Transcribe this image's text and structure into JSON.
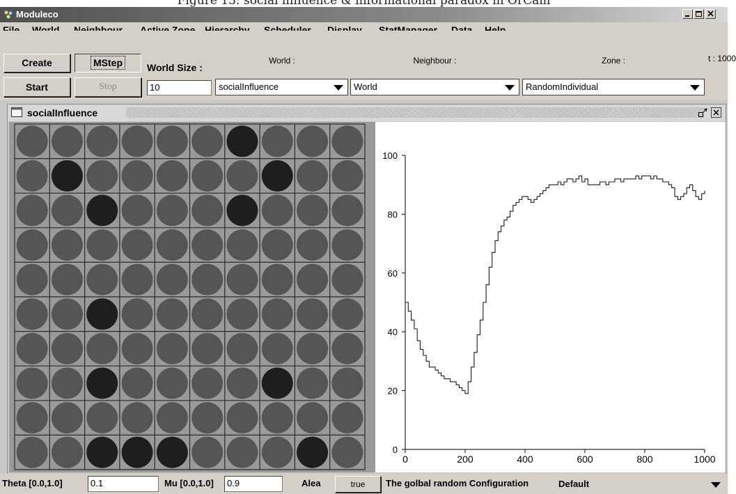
{
  "caption": "Figure 13: social influence & informational paradox in OrCam",
  "window": {
    "title": "Moduleco",
    "buttons": [
      "minimize-icon",
      "maximize-icon",
      "close-icon"
    ]
  },
  "menu": [
    "File",
    "World",
    "Neighbour",
    "Active Zone",
    "Hierarchy",
    "Scheduler",
    "Display",
    "StatManager",
    "Data",
    "Help"
  ],
  "toolbar": {
    "create_label": "Create",
    "mstep_label": "MStep",
    "start_label": "Start",
    "stop_label": "Stop",
    "world_size_label": "World Size :",
    "world_size_value": "10",
    "world_caption": "World :",
    "world_value": "socialInfluence",
    "neighbour_caption": "Neighbour :",
    "neighbour_value": "World",
    "zone_caption": "Zone :",
    "zone_value": "RandomIndividual",
    "time_label": "t : 1000"
  },
  "inner_window": {
    "title": "socialInfluence",
    "icons": [
      "window-icon",
      "minimize-frame-icon",
      "close-frame-icon"
    ]
  },
  "grid": {
    "rows": 10,
    "cols": 10,
    "cells": [
      [
        0,
        0,
        0,
        0,
        0,
        0,
        1,
        0,
        0,
        0
      ],
      [
        0,
        1,
        0,
        0,
        0,
        0,
        0,
        1,
        0,
        0
      ],
      [
        0,
        0,
        1,
        0,
        0,
        0,
        1,
        0,
        0,
        0
      ],
      [
        0,
        0,
        0,
        0,
        0,
        0,
        0,
        0,
        0,
        0
      ],
      [
        0,
        0,
        0,
        0,
        0,
        0,
        0,
        0,
        0,
        0
      ],
      [
        0,
        0,
        1,
        0,
        0,
        0,
        0,
        0,
        0,
        0
      ],
      [
        0,
        0,
        0,
        0,
        0,
        0,
        0,
        0,
        0,
        0
      ],
      [
        0,
        0,
        1,
        0,
        0,
        0,
        0,
        1,
        0,
        0
      ],
      [
        0,
        0,
        0,
        0,
        0,
        0,
        0,
        0,
        0,
        0
      ],
      [
        0,
        0,
        1,
        1,
        1,
        0,
        0,
        0,
        1,
        0
      ]
    ],
    "colors": {
      "state0": "#555555",
      "state1": "#1e1e1e",
      "background": "#9a9a9a",
      "lines": "#2a2a2a"
    }
  },
  "chart_data": {
    "type": "line",
    "title": "",
    "xlabel": "",
    "ylabel": "",
    "xlim": [
      0,
      1000
    ],
    "ylim": [
      0,
      100
    ],
    "xticks": [
      "0",
      "200",
      "400",
      "600",
      "800",
      "1000"
    ],
    "yticks": [
      "0",
      "20",
      "40",
      "60",
      "80",
      "100"
    ],
    "grid": false,
    "series": [
      {
        "x": [
          0,
          10,
          20,
          30,
          40,
          50,
          60,
          70,
          80,
          90,
          100,
          110,
          120,
          130,
          140,
          150,
          160,
          170,
          180,
          190,
          200,
          210,
          220,
          230,
          240,
          250,
          260,
          270,
          280,
          290,
          300,
          310,
          320,
          330,
          340,
          350,
          360,
          370,
          380,
          390,
          400,
          410,
          420,
          430,
          440,
          450,
          460,
          470,
          480,
          490,
          500,
          510,
          520,
          530,
          540,
          550,
          560,
          570,
          580,
          590,
          600,
          610,
          620,
          630,
          640,
          650,
          660,
          670,
          680,
          690,
          700,
          710,
          720,
          730,
          740,
          750,
          760,
          770,
          780,
          790,
          800,
          810,
          820,
          830,
          840,
          850,
          860,
          870,
          880,
          890,
          900,
          910,
          920,
          930,
          940,
          950,
          960,
          970,
          980,
          990,
          1000
        ],
        "y": [
          50,
          47,
          44,
          41,
          37,
          34,
          32,
          30,
          28,
          28,
          27,
          26,
          25,
          24,
          24,
          23,
          23,
          22,
          21,
          20,
          19,
          23,
          28,
          33,
          39,
          44,
          50,
          56,
          62,
          67,
          71,
          74,
          76,
          78,
          79,
          81,
          83,
          84,
          85,
          86,
          86,
          85,
          84,
          85,
          86,
          87,
          88,
          89,
          90,
          90,
          90,
          91,
          90,
          91,
          92,
          92,
          91,
          92,
          93,
          91,
          92,
          90,
          90,
          90,
          90,
          91,
          91,
          90,
          91,
          91,
          92,
          92,
          91,
          92,
          92,
          92,
          92,
          93,
          92,
          93,
          93,
          93,
          92,
          93,
          92,
          92,
          91,
          91,
          90,
          89,
          86,
          85,
          86,
          87,
          89,
          90,
          88,
          86,
          85,
          87,
          88
        ]
      }
    ],
    "line_color": "#1a1a1a"
  },
  "statusbar": {
    "theta_label": "Theta [0.0,1.0]",
    "theta_value": "0.1",
    "mu_label": "Mu [0.0,1.0]",
    "mu_value": "0.9",
    "alea_label": "Alea",
    "alea_value": "true",
    "config_label": "The golbal random Configuration",
    "config_value": "Default"
  }
}
